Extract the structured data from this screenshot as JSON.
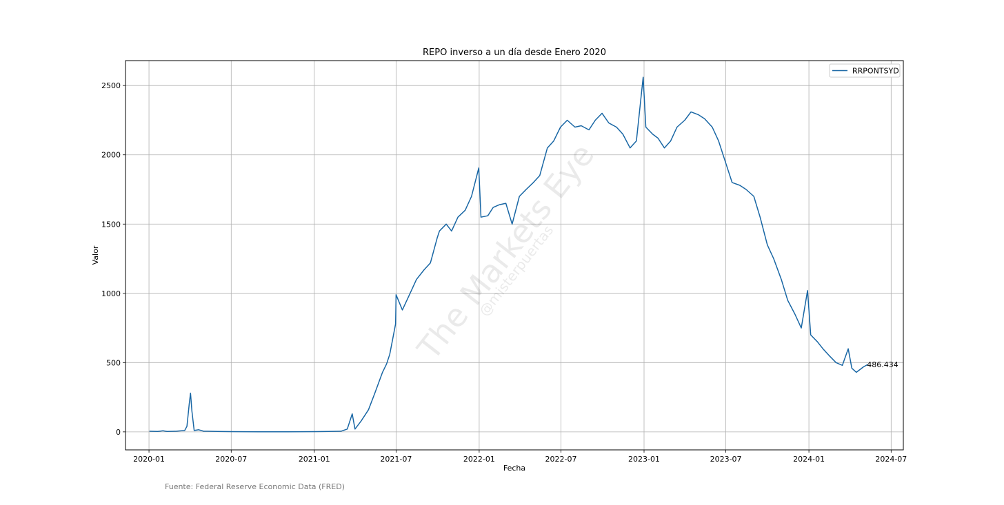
{
  "chart_data": {
    "type": "line",
    "title": "REPO inverso a un día desde Enero 2020",
    "xlabel": "Fecha",
    "ylabel": "Valor",
    "xlim": [
      "2019-11-10",
      "2024-07-28"
    ],
    "ylim": [
      -130,
      2680
    ],
    "x_ticks": [
      "2020-01",
      "2020-07",
      "2021-01",
      "2021-07",
      "2022-01",
      "2022-07",
      "2023-01",
      "2023-07",
      "2024-01",
      "2024-07"
    ],
    "y_ticks": [
      0,
      500,
      1000,
      1500,
      2000,
      2500
    ],
    "grid": true,
    "legend_position": "top-right",
    "line_color": "#1866a4",
    "series": [
      {
        "name": "RRPONTSYD",
        "x": [
          "2020-01-02",
          "2020-01-20",
          "2020-02-01",
          "2020-02-10",
          "2020-03-01",
          "2020-03-20",
          "2020-03-25",
          "2020-03-30",
          "2020-04-02",
          "2020-04-05",
          "2020-04-10",
          "2020-04-20",
          "2020-05-01",
          "2020-05-10",
          "2020-06-01",
          "2020-07-01",
          "2020-09-01",
          "2020-11-01",
          "2021-01-04",
          "2021-02-01",
          "2021-03-01",
          "2021-03-15",
          "2021-03-26",
          "2021-04-01",
          "2021-04-15",
          "2021-05-01",
          "2021-05-15",
          "2021-06-01",
          "2021-06-10",
          "2021-06-17",
          "2021-06-23",
          "2021-06-30",
          "2021-07-01",
          "2021-07-15",
          "2021-08-01",
          "2021-08-15",
          "2021-09-01",
          "2021-09-15",
          "2021-09-30",
          "2021-10-05",
          "2021-10-20",
          "2021-11-01",
          "2021-11-15",
          "2021-12-01",
          "2021-12-15",
          "2021-12-31",
          "2022-01-05",
          "2022-01-20",
          "2022-02-01",
          "2022-02-15",
          "2022-03-01",
          "2022-03-15",
          "2022-03-31",
          "2022-04-15",
          "2022-05-01",
          "2022-05-15",
          "2022-06-01",
          "2022-06-15",
          "2022-06-30",
          "2022-07-15",
          "2022-08-01",
          "2022-08-15",
          "2022-09-01",
          "2022-09-15",
          "2022-09-30",
          "2022-10-15",
          "2022-11-01",
          "2022-11-15",
          "2022-12-01",
          "2022-12-15",
          "2022-12-30",
          "2023-01-05",
          "2023-01-20",
          "2023-02-01",
          "2023-02-15",
          "2023-03-01",
          "2023-03-15",
          "2023-04-01",
          "2023-04-15",
          "2023-05-01",
          "2023-05-15",
          "2023-06-01",
          "2023-06-15",
          "2023-06-30",
          "2023-07-15",
          "2023-08-01",
          "2023-08-15",
          "2023-09-01",
          "2023-09-15",
          "2023-10-01",
          "2023-10-15",
          "2023-11-01",
          "2023-11-15",
          "2023-12-01",
          "2023-12-15",
          "2023-12-29",
          "2024-01-05",
          "2024-01-20",
          "2024-02-01",
          "2024-02-15",
          "2024-03-01",
          "2024-03-15",
          "2024-03-28",
          "2024-04-05",
          "2024-04-15",
          "2024-05-01",
          "2024-05-10"
        ],
        "values": [
          5,
          3,
          8,
          3,
          5,
          10,
          40,
          200,
          280,
          150,
          10,
          15,
          5,
          5,
          3,
          2,
          1,
          1,
          2,
          3,
          5,
          20,
          130,
          20,
          80,
          160,
          280,
          430,
          490,
          560,
          660,
          780,
          990,
          880,
          1000,
          1100,
          1170,
          1220,
          1400,
          1450,
          1500,
          1450,
          1550,
          1600,
          1700,
          1905,
          1550,
          1560,
          1620,
          1640,
          1650,
          1500,
          1700,
          1750,
          1800,
          1850,
          2050,
          2100,
          2200,
          2250,
          2200,
          2210,
          2180,
          2250,
          2300,
          2230,
          2200,
          2150,
          2050,
          2100,
          2560,
          2200,
          2150,
          2120,
          2050,
          2100,
          2200,
          2250,
          2310,
          2290,
          2260,
          2200,
          2100,
          1950,
          1800,
          1780,
          1750,
          1700,
          1550,
          1350,
          1250,
          1100,
          950,
          850,
          750,
          1020,
          700,
          650,
          600,
          550,
          500,
          480,
          600,
          460,
          430,
          470,
          486.434
        ]
      }
    ],
    "annotations": [
      {
        "text": "486.434",
        "x": "2024-05-10",
        "y": 486.434
      }
    ]
  },
  "watermark": {
    "main": "The Markets Eye",
    "handle": "@misterpuertas"
  },
  "source_note": "Fuente: Federal Reserve Economic Data (FRED)"
}
